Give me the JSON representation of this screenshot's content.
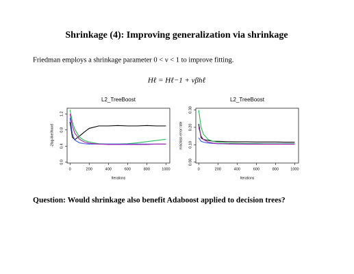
{
  "title": "Shrinkage (4): Improving generalization via shrinkage",
  "text": "Friedman employs a shrinkage parameter 0 < ν < 1 to improve fitting.",
  "formula": "Hℓ = Hℓ−1 + νβhℓ",
  "question": "Question: Would shrinkage also benefit Adaboost applied to decision trees?",
  "chart_data": [
    {
      "type": "line",
      "title": "L2_TreeBoost",
      "x_label": "Iterations",
      "y_label": "-2log-likelihood",
      "x": [
        0,
        25,
        50,
        100,
        150,
        200,
        300,
        400,
        500,
        600,
        700,
        800,
        900,
        1000
      ],
      "xlim": [
        -30,
        1040
      ],
      "xticks": [
        0,
        200,
        400,
        600,
        800,
        1000
      ],
      "ylim": [
        -0.02,
        1.34
      ],
      "yticks": [
        {
          "value": 0,
          "label": "0.0"
        },
        0.4,
        0.8,
        1.2
      ],
      "series": [
        {
          "color": "#000000",
          "values": [
            1.0,
            0.62,
            0.56,
            0.65,
            0.75,
            0.84,
            0.9,
            0.9,
            0.91,
            0.9,
            0.9,
            0.91,
            0.9,
            0.9
          ]
        },
        {
          "color": "#22bb55",
          "values": [
            1.3,
            1.0,
            0.82,
            0.62,
            0.54,
            0.5,
            0.46,
            0.45,
            0.45,
            0.46,
            0.48,
            0.51,
            0.54,
            0.57
          ]
        },
        {
          "color": "#3355ee",
          "values": [
            1.1,
            0.7,
            0.55,
            0.48,
            0.46,
            0.45,
            0.45,
            0.45,
            0.45,
            0.45,
            0.45,
            0.45,
            0.45,
            0.45
          ]
        },
        {
          "color": "#aa22aa",
          "values": [
            1.2,
            0.9,
            0.72,
            0.57,
            0.5,
            0.47,
            0.45,
            0.44,
            0.44,
            0.44,
            0.44,
            0.44,
            0.45,
            0.45
          ]
        }
      ]
    },
    {
      "type": "line",
      "title": "L2_TreeBoost",
      "x_label": "Iterations",
      "y_label": "misclass error rate",
      "x": [
        0,
        25,
        50,
        100,
        150,
        200,
        300,
        400,
        500,
        600,
        700,
        800,
        900,
        1000
      ],
      "xlim": [
        -30,
        1040
      ],
      "xticks": [
        0,
        200,
        400,
        600,
        800,
        1000
      ],
      "ylim": [
        -0.005,
        0.31
      ],
      "yticks": [
        {
          "value": 0,
          "label": "0.00"
        },
        {
          "value": 0.1,
          "label": "0.10"
        },
        {
          "value": 0.2,
          "label": "0.20"
        },
        {
          "value": 0.3,
          "label": "0.30"
        }
      ],
      "series": [
        {
          "color": "#000000",
          "values": [
            0.22,
            0.14,
            0.13,
            0.125,
            0.12,
            0.12,
            0.118,
            0.117,
            0.117,
            0.116,
            0.116,
            0.116,
            0.115,
            0.115
          ]
        },
        {
          "color": "#22bb55",
          "values": [
            0.3,
            0.2,
            0.16,
            0.13,
            0.12,
            0.115,
            0.11,
            0.108,
            0.107,
            0.107,
            0.106,
            0.106,
            0.106,
            0.106
          ]
        },
        {
          "color": "#3355ee",
          "values": [
            0.14,
            0.12,
            0.115,
            0.11,
            0.108,
            0.106,
            0.105,
            0.104,
            0.104,
            0.104,
            0.104,
            0.104,
            0.104,
            0.104
          ]
        },
        {
          "color": "#aa22aa",
          "values": [
            0.2,
            0.15,
            0.13,
            0.115,
            0.11,
            0.107,
            0.105,
            0.104,
            0.103,
            0.103,
            0.103,
            0.103,
            0.103,
            0.103
          ]
        }
      ]
    }
  ]
}
